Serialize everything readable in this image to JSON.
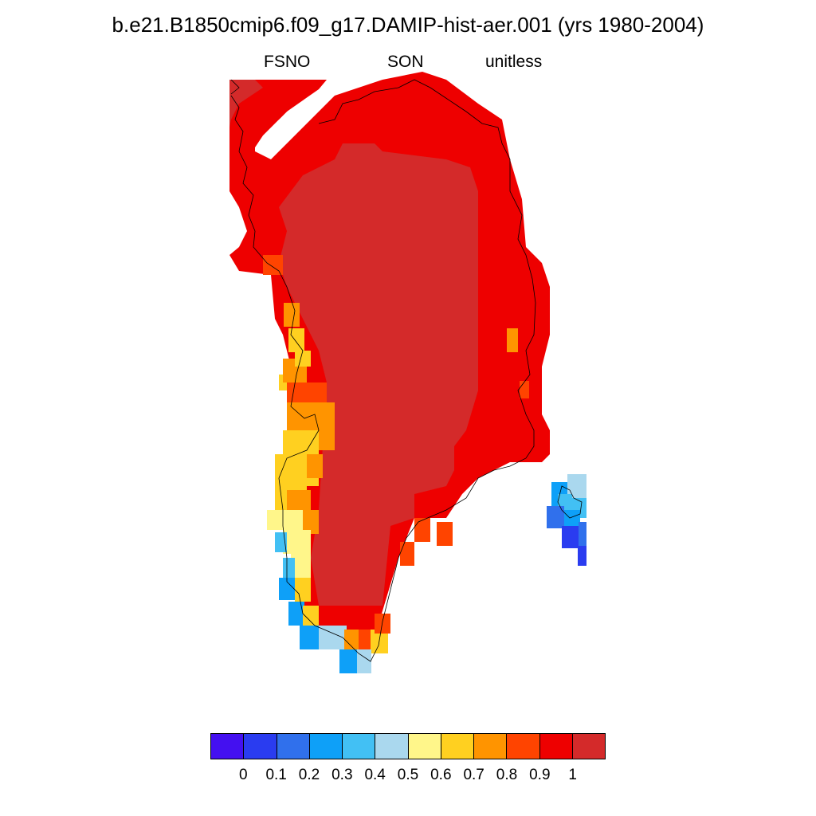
{
  "title": "b.e21.B1850cmip6.f09_g17.DAMIP-hist-aer.001 (yrs 1980-2004)",
  "subtitle": {
    "variable": "FSNO",
    "season": "SON",
    "units": "unitless"
  },
  "colorbar": {
    "colors": [
      "#4410f0",
      "#2a3cf0",
      "#3070ec",
      "#0ea0f8",
      "#42c0f4",
      "#aad8ee",
      "#fff68a",
      "#ffd020",
      "#ff9400",
      "#ff4400",
      "#ee0000",
      "#d42a2a"
    ],
    "labels": [
      "0",
      "0.1",
      "0.2",
      "0.3",
      "0.4",
      "0.5",
      "0.6",
      "0.7",
      "0.8",
      "0.9",
      "1"
    ]
  },
  "map_colors": {
    "land_outline": "#000000",
    "high": "#d42a2a",
    "mid_high": "#ee0000"
  }
}
